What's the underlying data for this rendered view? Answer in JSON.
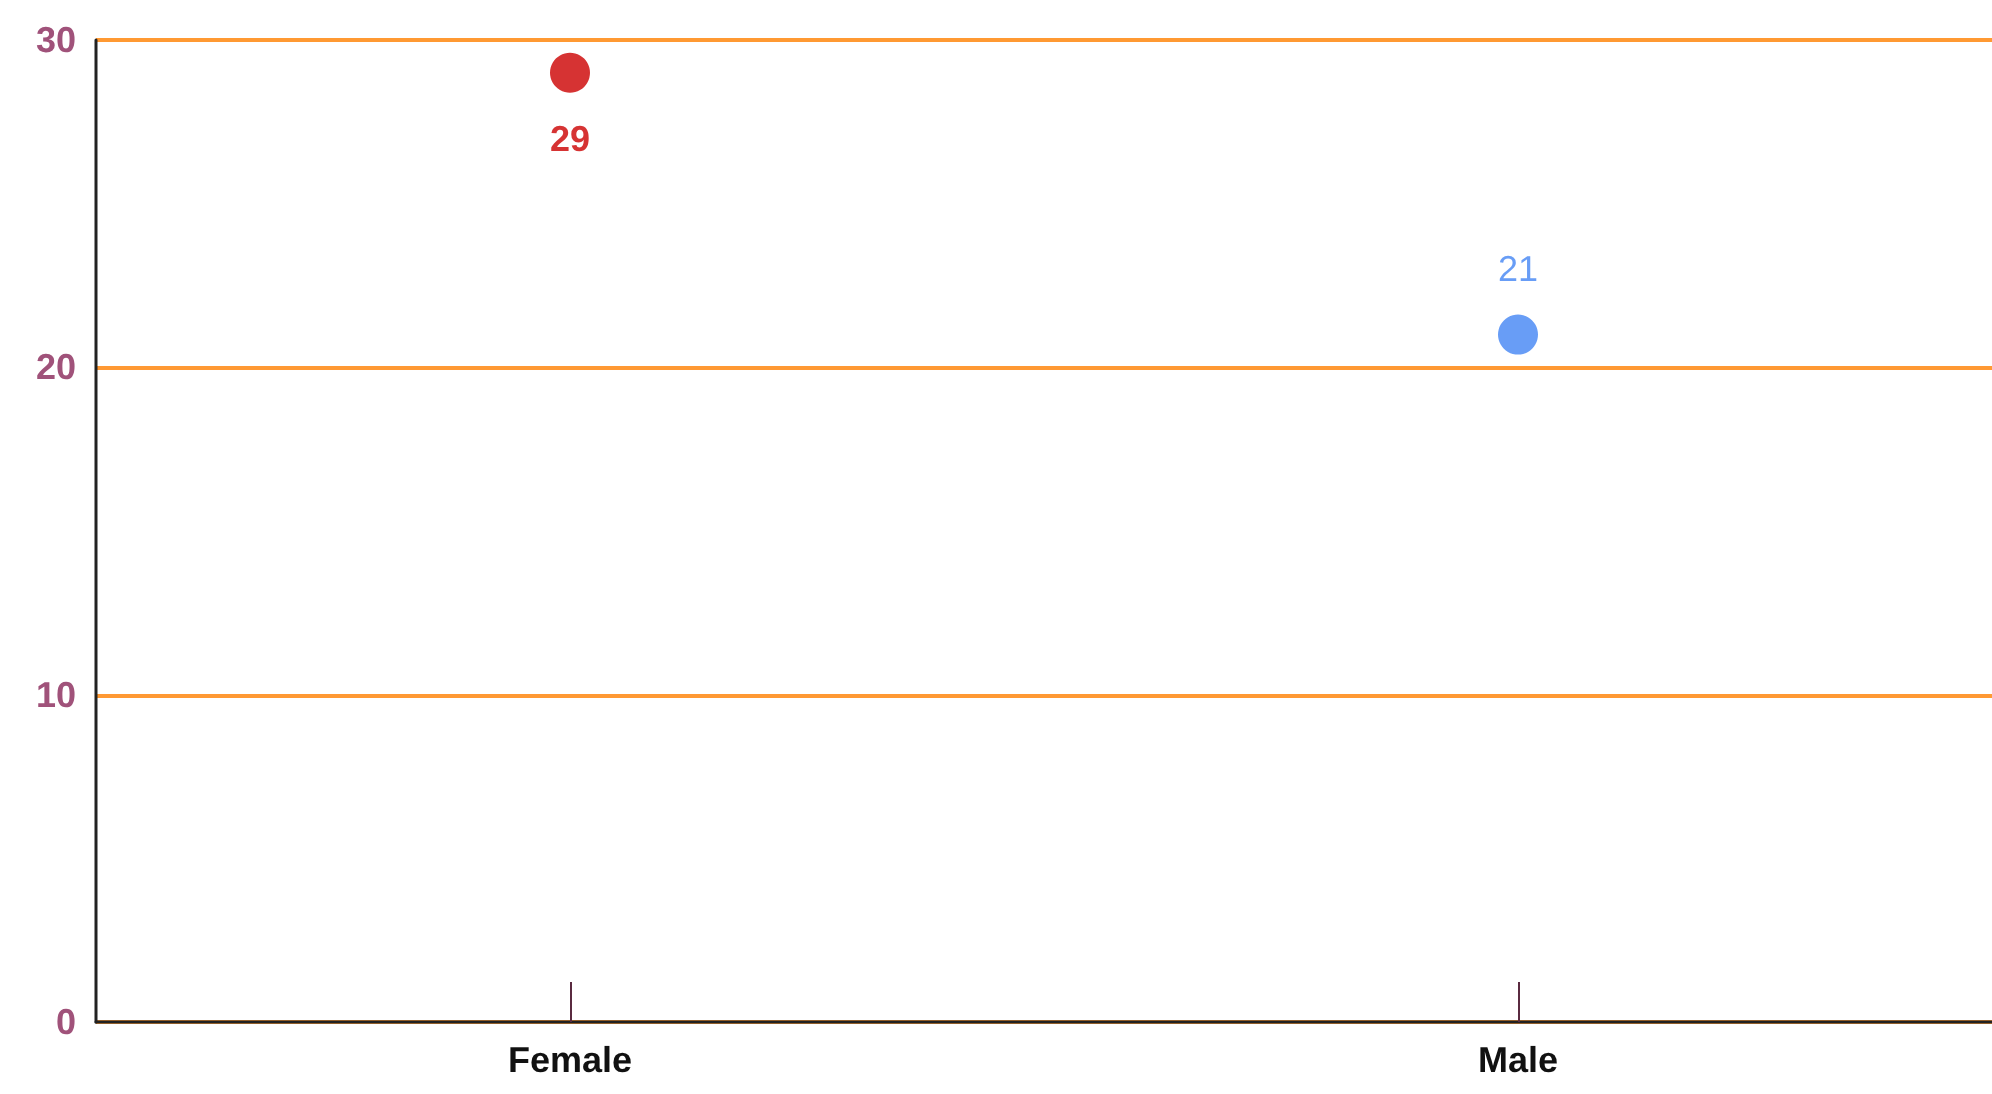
{
  "chart_data": {
    "type": "scatter",
    "categories": [
      "Female",
      "Male"
    ],
    "values": [
      29,
      21
    ],
    "colors": [
      "#cc0000",
      "#4285f4"
    ],
    "data_labels": true,
    "ylim": [
      0,
      30
    ],
    "yticks": [
      0,
      10,
      20,
      30
    ],
    "grid": "y",
    "marker": "circle"
  }
}
